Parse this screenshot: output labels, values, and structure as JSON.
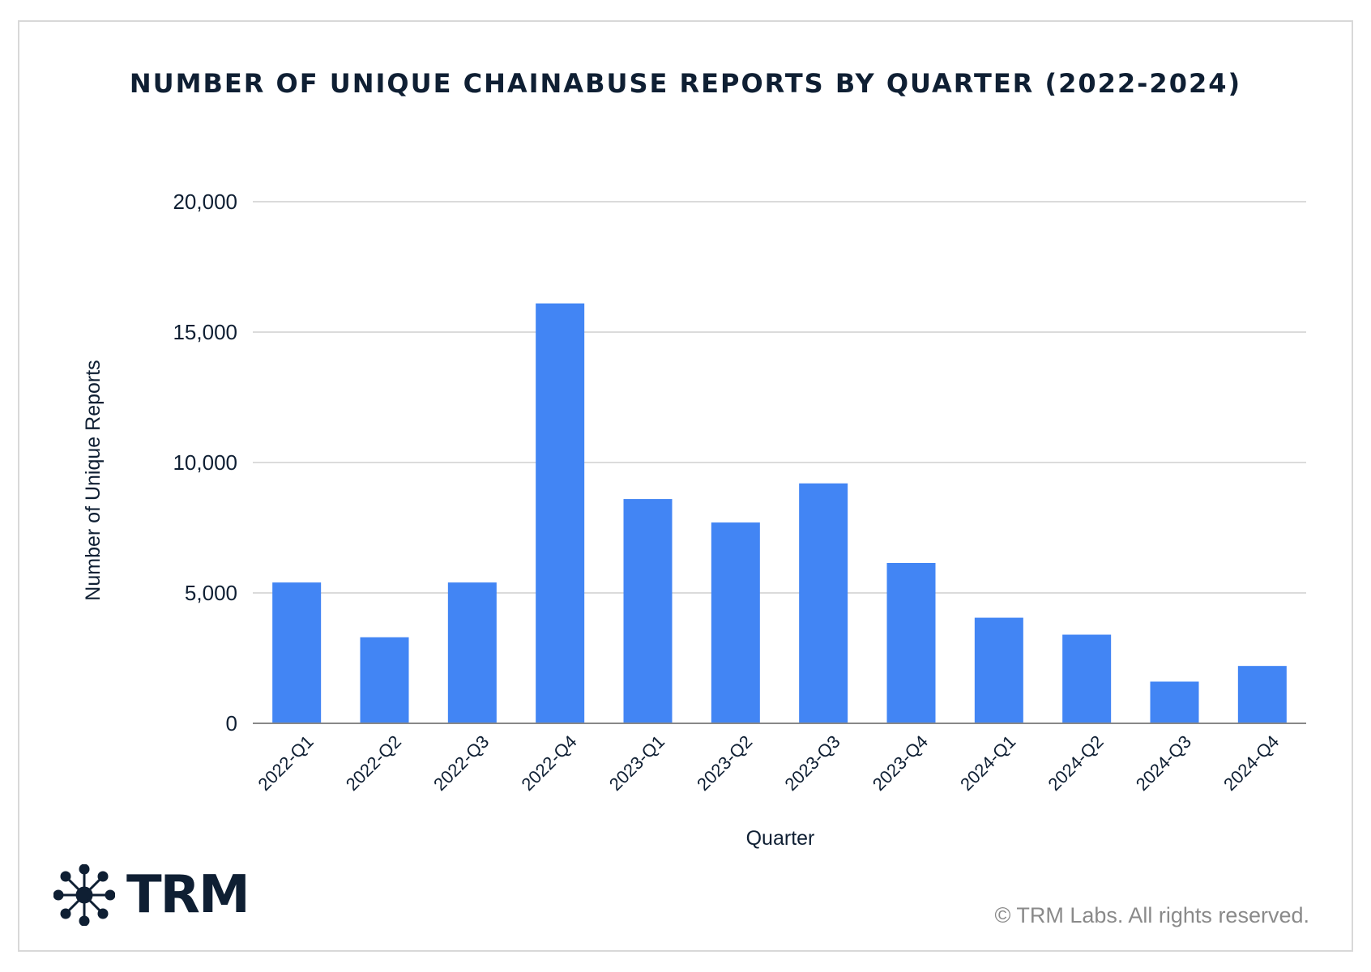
{
  "chart_data": {
    "type": "bar",
    "title": "NUMBER OF UNIQUE CHAINABUSE REPORTS BY QUARTER (2022-2024)",
    "xlabel": "Quarter",
    "ylabel": "Number of Unique Reports",
    "categories": [
      "2022-Q1",
      "2022-Q2",
      "2022-Q3",
      "2022-Q4",
      "2023-Q1",
      "2023-Q2",
      "2023-Q3",
      "2023-Q4",
      "2024-Q1",
      "2024-Q2",
      "2024-Q3",
      "2024-Q4"
    ],
    "values": [
      5400,
      3300,
      5400,
      16100,
      8600,
      7700,
      9200,
      6150,
      4050,
      3400,
      1600,
      2200
    ],
    "ylim": [
      0,
      20000
    ],
    "yticks": [
      0,
      5000,
      10000,
      15000,
      20000
    ],
    "ytick_labels": [
      "0",
      "5,000",
      "10,000",
      "15,000",
      "20,000"
    ],
    "grid": true,
    "bar_color": "#4285f4"
  },
  "branding": {
    "logo_text": "TRM",
    "copyright": "© TRM Labs. All rights reserved."
  },
  "colors": {
    "text_dark": "#0f1f33",
    "grid": "#cfcfcf",
    "axis": "#888888",
    "copyright": "#8a8a8a"
  }
}
